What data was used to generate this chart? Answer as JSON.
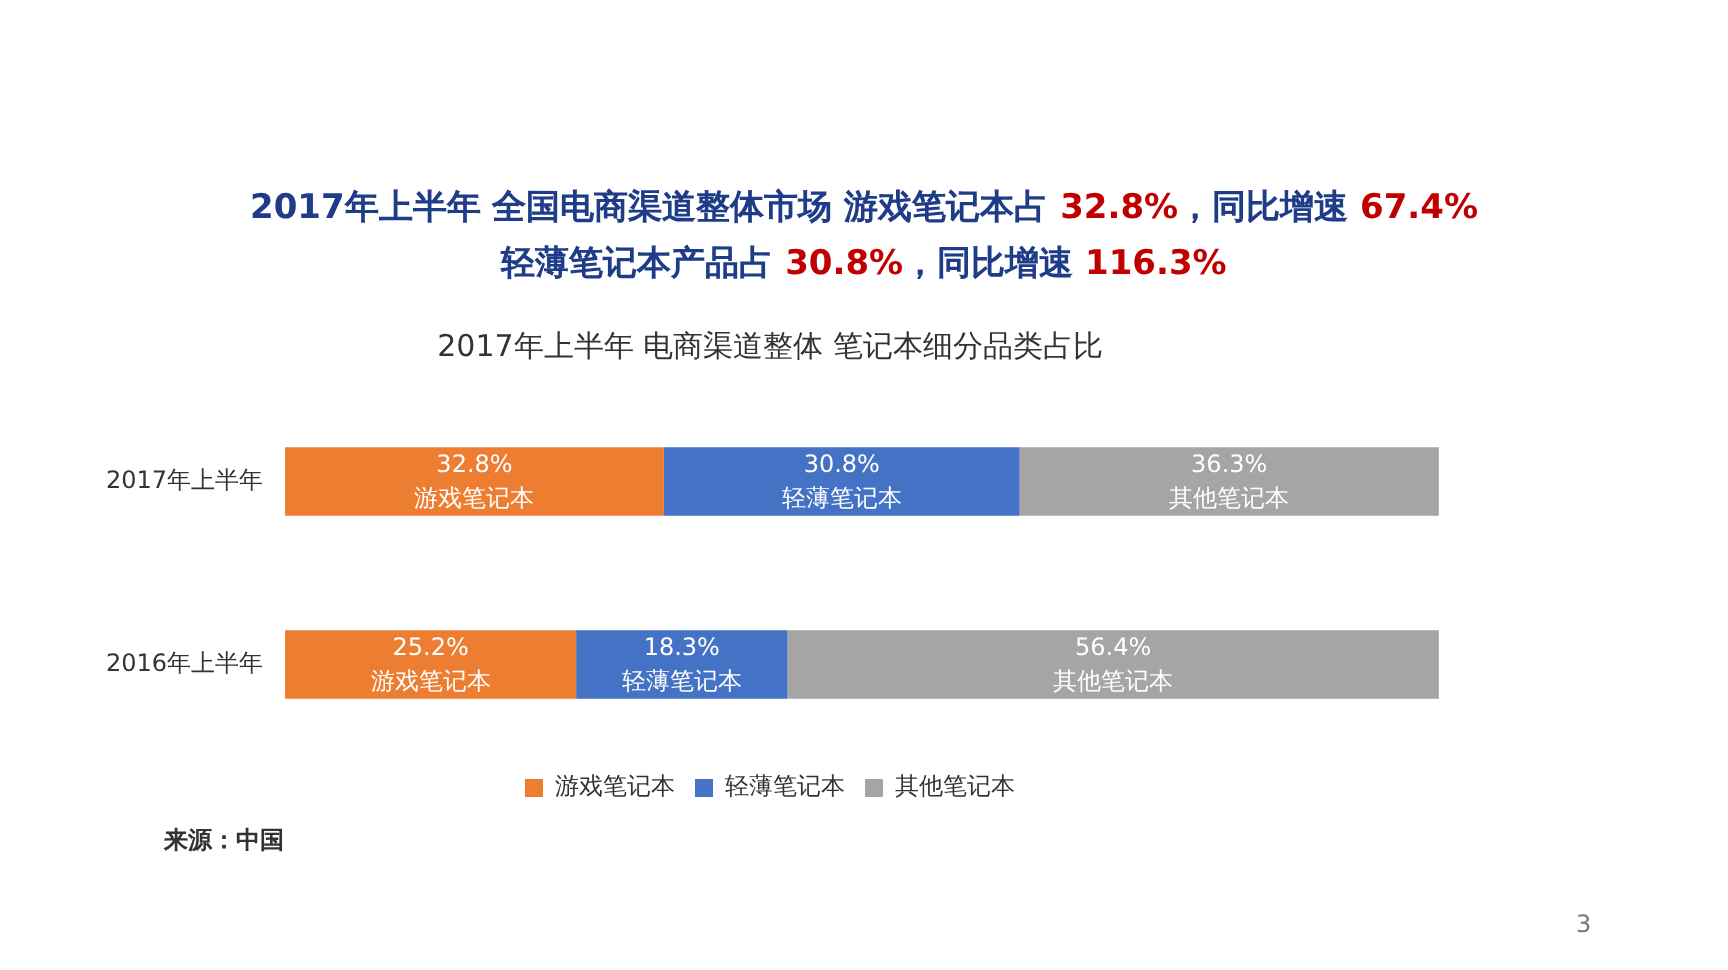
{
  "chart_data": {
    "type": "bar",
    "orientation": "horizontal",
    "stacked": true,
    "title": "2017年上半年 电商渠道整体 笔记本细分品类占比",
    "annotations": [
      "2017年上半年 全国电商渠道整体市场 游戏笔记本占 32.8%，同比增速 67.4%",
      "轻薄笔记本产品占 30.8%，同比增速 116.3%",
      "来源：中国",
      "3"
    ],
    "categories": [
      "2017年上半年",
      "2016年上半年"
    ],
    "series": [
      {
        "name": "游戏笔记本",
        "color": "#ed7d31",
        "values": [
          32.8,
          25.2
        ],
        "value_labels": [
          "32.8%",
          "25.2%"
        ]
      },
      {
        "name": "轻薄笔记本",
        "color": "#4472c4",
        "values": [
          30.8,
          18.3
        ],
        "value_labels": [
          "30.8%",
          "18.3%"
        ]
      },
      {
        "name": "其他笔记本",
        "color": "#a5a5a5",
        "values": [
          36.3,
          56.4
        ],
        "value_labels": [
          "36.3%",
          "56.4%"
        ]
      }
    ],
    "legend": "bottom",
    "tick_labels": "y"
  }
}
